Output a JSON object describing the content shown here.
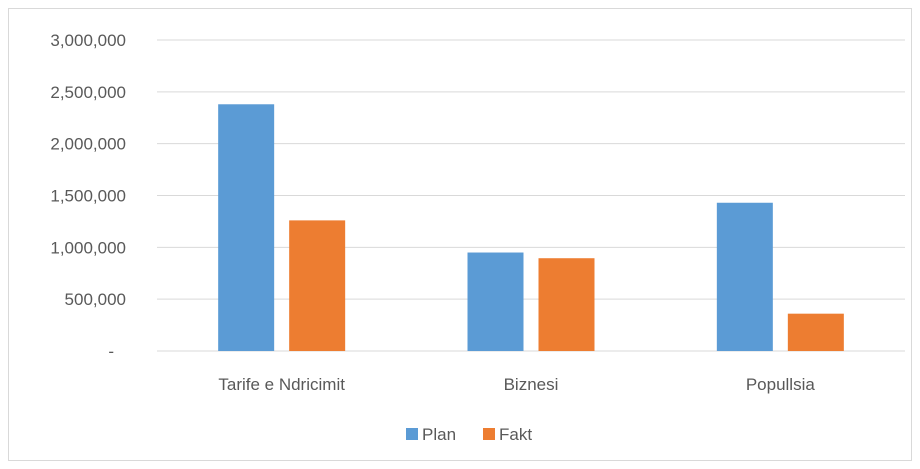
{
  "chart_data": {
    "type": "bar",
    "categories": [
      "Tarife e Ndricimit",
      "Biznesi",
      "Popullsia"
    ],
    "series": [
      {
        "name": "Plan",
        "values": [
          2380000,
          950000,
          1430000
        ],
        "color": "#5b9bd5"
      },
      {
        "name": "Fakt",
        "values": [
          1260000,
          895000,
          360000
        ],
        "color": "#ed7d31"
      }
    ],
    "ylim": [
      0,
      3000000
    ],
    "y_ticks": [
      0,
      500000,
      1000000,
      1500000,
      2000000,
      2500000,
      3000000
    ],
    "y_tick_labels": [
      "-",
      "500,000",
      "1,000,000",
      "1,500,000",
      "2,000,000",
      "2,500,000",
      "3,000,000"
    ],
    "grid": true,
    "legend_position": "bottom",
    "gridline_color": "#d9d9d9"
  }
}
